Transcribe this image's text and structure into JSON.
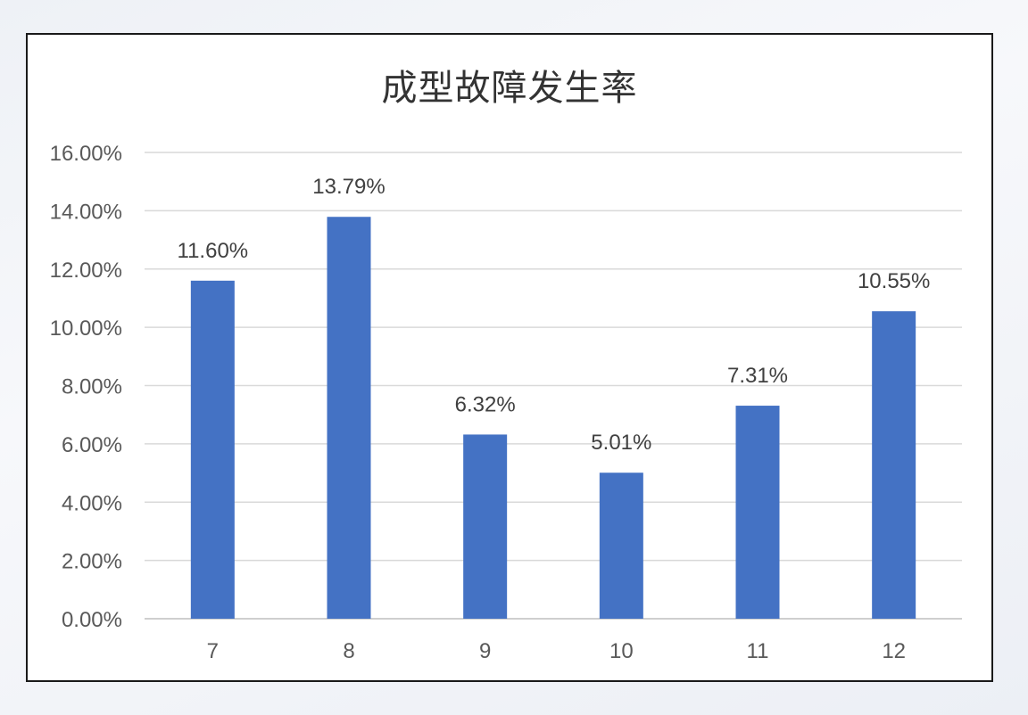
{
  "chart_data": {
    "type": "bar",
    "title": "成型故障发生率",
    "xlabel": "",
    "ylabel": "",
    "categories": [
      "7",
      "8",
      "9",
      "10",
      "11",
      "12"
    ],
    "values": [
      0.116,
      0.1379,
      0.0632,
      0.0501,
      0.0731,
      0.1055
    ],
    "data_labels": [
      "11.60%",
      "13.79%",
      "6.32%",
      "5.01%",
      "7.31%",
      "10.55%"
    ],
    "ylim": [
      0,
      0.16
    ],
    "y_ticks": [
      0,
      0.02,
      0.04,
      0.06,
      0.08,
      0.1,
      0.12,
      0.14,
      0.16
    ],
    "y_tick_labels": [
      "0.00%",
      "2.00%",
      "4.00%",
      "6.00%",
      "8.00%",
      "10.00%",
      "12.00%",
      "14.00%",
      "16.00%"
    ],
    "grid": true,
    "legend": "none",
    "bar_color": "#4472C4",
    "grid_color": "#D9D9D9"
  }
}
